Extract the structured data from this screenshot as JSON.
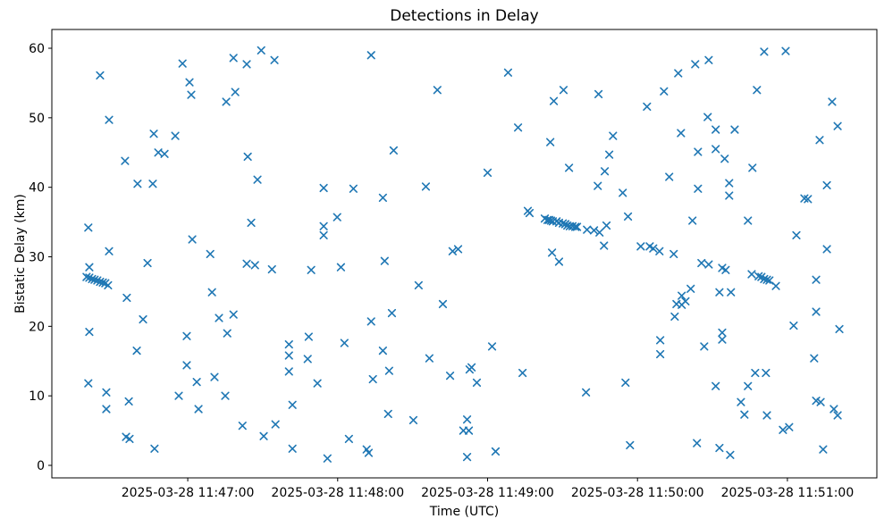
{
  "figure": {
    "title": "Detections in Delay",
    "xlabel": "Time (UTC)",
    "ylabel": "Bistatic Delay (km)"
  },
  "chart_data": {
    "type": "scatter",
    "title": "Detections in Delay",
    "xlabel": "Time (UTC)",
    "ylabel": "Bistatic Delay (km)",
    "legend": null,
    "grid": false,
    "marker": "x",
    "marker_color": "#1f77b4",
    "axes_color": "#000000",
    "x_unit": "seconds since 2025-03-28 11:46:00 UTC",
    "y_unit": "km",
    "xlim_s": [
      5.6,
      335.8
    ],
    "ylim": [
      -1.8,
      62.7
    ],
    "x_ticks": [
      {
        "s": 60,
        "label": "2025-03-28 11:47:00"
      },
      {
        "s": 120,
        "label": "2025-03-28 11:48:00"
      },
      {
        "s": 180,
        "label": "2025-03-28 11:49:00"
      },
      {
        "s": 240,
        "label": "2025-03-28 11:50:00"
      },
      {
        "s": 300,
        "label": "2025-03-28 11:51:00"
      }
    ],
    "y_ticks": [
      0,
      10,
      20,
      30,
      40,
      50,
      60
    ],
    "points": [
      [
        19.5,
        27.1
      ],
      [
        20.2,
        34.2
      ],
      [
        20.2,
        11.8
      ],
      [
        20.6,
        28.5
      ],
      [
        20.6,
        27.0
      ],
      [
        20.6,
        19.2
      ],
      [
        21.7,
        26.8
      ],
      [
        22.7,
        26.7
      ],
      [
        23.8,
        26.6
      ],
      [
        24.9,
        56.1
      ],
      [
        24.9,
        26.4
      ],
      [
        26.0,
        26.3
      ],
      [
        27.0,
        26.2
      ],
      [
        27.4,
        10.5
      ],
      [
        27.4,
        8.1
      ],
      [
        28.1,
        25.9
      ],
      [
        28.5,
        49.7
      ],
      [
        28.5,
        30.8
      ],
      [
        34.9,
        43.8
      ],
      [
        35.3,
        4.1
      ],
      [
        35.6,
        24.1
      ],
      [
        36.4,
        9.2
      ],
      [
        36.7,
        3.8
      ],
      [
        39.6,
        16.5
      ],
      [
        39.9,
        40.5
      ],
      [
        42.1,
        21.0
      ],
      [
        43.9,
        29.1
      ],
      [
        46.0,
        40.5
      ],
      [
        46.4,
        47.7
      ],
      [
        46.7,
        2.4
      ],
      [
        48.2,
        45.0
      ],
      [
        50.7,
        44.8
      ],
      [
        55.0,
        47.4
      ],
      [
        56.4,
        10.0
      ],
      [
        57.9,
        57.8
      ],
      [
        59.6,
        18.6
      ],
      [
        59.6,
        14.4
      ],
      [
        60.7,
        55.1
      ],
      [
        61.4,
        53.3
      ],
      [
        61.8,
        32.5
      ],
      [
        63.6,
        12.0
      ],
      [
        64.3,
        8.1
      ],
      [
        69.0,
        30.4
      ],
      [
        69.7,
        24.9
      ],
      [
        70.7,
        12.7
      ],
      [
        72.5,
        21.2
      ],
      [
        75.0,
        10.0
      ],
      [
        75.4,
        52.3
      ],
      [
        75.8,
        19.0
      ],
      [
        78.3,
        58.6
      ],
      [
        78.3,
        21.7
      ],
      [
        79.0,
        53.7
      ],
      [
        81.9,
        5.7
      ],
      [
        83.6,
        57.7
      ],
      [
        83.6,
        29.0
      ],
      [
        84.0,
        44.4
      ],
      [
        85.4,
        34.9
      ],
      [
        87.9,
        41.1
      ],
      [
        86.9,
        28.8
      ],
      [
        89.4,
        59.7
      ],
      [
        90.4,
        4.2
      ],
      [
        93.7,
        28.2
      ],
      [
        94.7,
        58.3
      ],
      [
        95.1,
        5.9
      ],
      [
        100.5,
        17.4
      ],
      [
        100.5,
        15.8
      ],
      [
        100.5,
        13.5
      ],
      [
        101.9,
        8.7
      ],
      [
        101.9,
        2.4
      ],
      [
        108.0,
        15.3
      ],
      [
        108.4,
        18.5
      ],
      [
        109.4,
        28.1
      ],
      [
        111.9,
        11.8
      ],
      [
        114.4,
        39.9
      ],
      [
        114.4,
        34.4
      ],
      [
        114.4,
        33.1
      ],
      [
        115.9,
        1.0
      ],
      [
        119.8,
        35.7
      ],
      [
        121.3,
        28.5
      ],
      [
        122.7,
        17.6
      ],
      [
        124.5,
        3.8
      ],
      [
        126.3,
        39.8
      ],
      [
        131.6,
        2.3
      ],
      [
        132.4,
        1.8
      ],
      [
        133.4,
        59.0
      ],
      [
        133.4,
        20.7
      ],
      [
        134.1,
        12.4
      ],
      [
        138.1,
        38.5
      ],
      [
        138.1,
        16.5
      ],
      [
        138.8,
        29.4
      ],
      [
        140.2,
        7.4
      ],
      [
        140.6,
        13.6
      ],
      [
        141.7,
        21.9
      ],
      [
        142.4,
        45.3
      ],
      [
        150.3,
        6.5
      ],
      [
        152.4,
        25.9
      ],
      [
        155.3,
        40.1
      ],
      [
        156.7,
        15.4
      ],
      [
        159.9,
        54.0
      ],
      [
        162.1,
        23.2
      ],
      [
        165.0,
        12.9
      ],
      [
        166.0,
        30.8
      ],
      [
        168.2,
        31.1
      ],
      [
        170.3,
        5.0
      ],
      [
        171.8,
        6.6
      ],
      [
        171.8,
        1.2
      ],
      [
        172.5,
        5.0
      ],
      [
        172.8,
        13.8
      ],
      [
        173.6,
        14.1
      ],
      [
        175.7,
        11.9
      ],
      [
        180.0,
        42.1
      ],
      [
        181.8,
        17.1
      ],
      [
        183.2,
        2.0
      ],
      [
        188.2,
        56.5
      ],
      [
        192.2,
        48.6
      ],
      [
        194.0,
        13.3
      ],
      [
        196.1,
        36.6
      ],
      [
        196.8,
        36.3
      ],
      [
        202.9,
        35.5
      ],
      [
        204.0,
        35.3
      ],
      [
        204.7,
        35.3
      ],
      [
        205.1,
        46.5
      ],
      [
        205.4,
        35.2
      ],
      [
        205.8,
        30.6
      ],
      [
        206.1,
        35.1
      ],
      [
        206.5,
        52.4
      ],
      [
        207.6,
        35.1
      ],
      [
        208.6,
        34.9
      ],
      [
        208.6,
        29.3
      ],
      [
        210.1,
        34.8
      ],
      [
        210.4,
        54.0
      ],
      [
        211.1,
        34.7
      ],
      [
        211.9,
        34.5
      ],
      [
        212.6,
        42.8
      ],
      [
        212.9,
        34.4
      ],
      [
        214.0,
        34.4
      ],
      [
        215.1,
        34.3
      ],
      [
        215.8,
        34.3
      ],
      [
        219.4,
        10.5
      ],
      [
        219.8,
        33.9
      ],
      [
        222.6,
        33.8
      ],
      [
        224.1,
        40.2
      ],
      [
        224.4,
        53.4
      ],
      [
        224.8,
        33.5
      ],
      [
        226.6,
        31.6
      ],
      [
        226.9,
        42.3
      ],
      [
        227.6,
        34.5
      ],
      [
        228.7,
        44.7
      ],
      [
        230.2,
        47.4
      ],
      [
        234.1,
        39.2
      ],
      [
        235.2,
        11.9
      ],
      [
        236.2,
        35.8
      ],
      [
        237.0,
        2.9
      ],
      [
        241.3,
        31.5
      ],
      [
        243.8,
        51.6
      ],
      [
        244.9,
        31.5
      ],
      [
        246.3,
        31.2
      ],
      [
        248.8,
        30.8
      ],
      [
        249.1,
        18.0
      ],
      [
        249.1,
        16.0
      ],
      [
        250.6,
        53.8
      ],
      [
        252.7,
        41.5
      ],
      [
        254.5,
        30.4
      ],
      [
        254.9,
        21.4
      ],
      [
        255.6,
        23.2
      ],
      [
        256.3,
        56.4
      ],
      [
        257.4,
        47.8
      ],
      [
        257.7,
        24.4
      ],
      [
        257.7,
        23.1
      ],
      [
        259.2,
        23.6
      ],
      [
        261.3,
        25.4
      ],
      [
        262.0,
        35.2
      ],
      [
        263.1,
        57.7
      ],
      [
        263.8,
        3.2
      ],
      [
        264.2,
        45.1
      ],
      [
        264.2,
        39.8
      ],
      [
        265.6,
        29.1
      ],
      [
        266.7,
        17.1
      ],
      [
        268.1,
        50.1
      ],
      [
        268.5,
        58.3
      ],
      [
        268.5,
        28.9
      ],
      [
        271.3,
        48.3
      ],
      [
        271.3,
        45.5
      ],
      [
        271.3,
        11.4
      ],
      [
        272.8,
        24.9
      ],
      [
        272.8,
        2.5
      ],
      [
        273.9,
        28.4
      ],
      [
        273.9,
        19.1
      ],
      [
        273.9,
        18.1
      ],
      [
        274.9,
        44.1
      ],
      [
        275.3,
        28.1
      ],
      [
        276.7,
        40.6
      ],
      [
        276.7,
        38.8
      ],
      [
        277.1,
        1.5
      ],
      [
        277.4,
        24.9
      ],
      [
        278.9,
        48.3
      ],
      [
        281.4,
        9.1
      ],
      [
        282.8,
        7.3
      ],
      [
        284.2,
        35.2
      ],
      [
        284.2,
        11.4
      ],
      [
        285.7,
        27.5
      ],
      [
        286.0,
        42.8
      ],
      [
        287.1,
        13.3
      ],
      [
        287.8,
        54.0
      ],
      [
        288.5,
        27.2
      ],
      [
        289.6,
        27.1
      ],
      [
        290.7,
        59.5
      ],
      [
        290.7,
        26.8
      ],
      [
        291.4,
        13.3
      ],
      [
        291.8,
        26.7
      ],
      [
        291.8,
        7.2
      ],
      [
        292.8,
        26.6
      ],
      [
        295.4,
        25.8
      ],
      [
        298.2,
        5.1
      ],
      [
        299.3,
        59.6
      ],
      [
        300.7,
        5.5
      ],
      [
        302.5,
        20.1
      ],
      [
        303.6,
        33.1
      ],
      [
        306.8,
        38.4
      ],
      [
        308.2,
        38.3
      ],
      [
        310.7,
        15.4
      ],
      [
        311.5,
        26.7
      ],
      [
        311.5,
        22.1
      ],
      [
        311.5,
        9.3
      ],
      [
        312.9,
        46.8
      ],
      [
        313.3,
        9.1
      ],
      [
        314.3,
        2.3
      ],
      [
        315.8,
        40.3
      ],
      [
        315.8,
        31.1
      ],
      [
        317.9,
        52.3
      ],
      [
        318.6,
        8.1
      ],
      [
        320.1,
        48.8
      ],
      [
        320.1,
        7.2
      ],
      [
        320.8,
        19.6
      ]
    ]
  }
}
